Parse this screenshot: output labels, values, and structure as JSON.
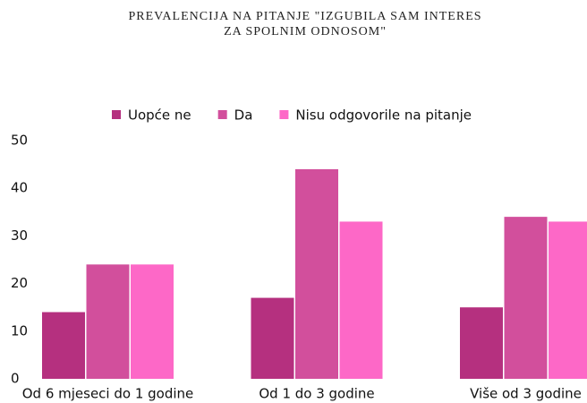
{
  "chart_data": {
    "type": "bar",
    "title": "PREVALENCIJA NA PITANJE \"IZGUBILA SAM INTERES ZA SPOLNIM ODNOSOM\"",
    "categories": [
      "Od 6 mjeseci do 1 godine",
      "Od 1 do 3 godine",
      "Više od 3 godine"
    ],
    "series": [
      {
        "name": "Uopće ne",
        "color": "#b5307f",
        "values": [
          14,
          17,
          15
        ]
      },
      {
        "name": "Da",
        "color": "#d24f9c",
        "values": [
          24,
          44,
          34
        ]
      },
      {
        "name": "Nisu odgovorile na pitanje",
        "color": "#fd68c7",
        "values": [
          24,
          33,
          33
        ]
      }
    ],
    "ylim": [
      0,
      50
    ],
    "yticks": [
      0,
      10,
      20,
      30,
      40,
      50
    ],
    "grid": false,
    "legend": "top"
  }
}
